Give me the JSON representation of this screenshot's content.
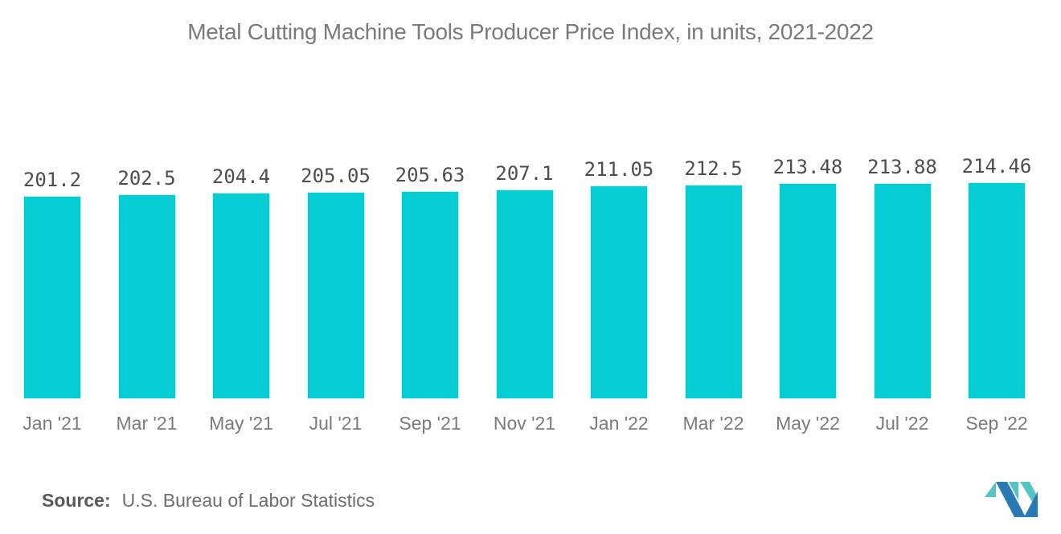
{
  "title": "Metal Cutting Machine Tools Producer Price Index, in units, 2021-2022",
  "source": {
    "label": "Source:",
    "text": "U.S. Bureau of Labor Statistics"
  },
  "logo": {
    "name": "mordor-intelligence-logo",
    "blue": "#2b78b7",
    "teal": "#52c5c2"
  },
  "colors": {
    "bar": "#06cdd4",
    "bar_border": "#c6f2f4",
    "title_text": "#7a7a7a",
    "value_text": "#4d4d4d",
    "axis_text": "#7a7a7a",
    "source_label_text": "#595959",
    "source_text": "#6e6e6e"
  },
  "chart_data": {
    "type": "bar",
    "title": "Metal Cutting Machine Tools Producer Price Index, in units, 2021-2022",
    "categories": [
      "Jan '21",
      "Mar '21",
      "May '21",
      "Jul '21",
      "Sep '21",
      "Nov '21",
      "Jan '22",
      "Mar '22",
      "May '22",
      "Jul '22",
      "Sep '22"
    ],
    "values": [
      201.2,
      202.5,
      204.4,
      205.05,
      205.63,
      207.1,
      211.05,
      212.5,
      213.48,
      213.88,
      214.46
    ],
    "value_labels": [
      "201.2",
      "202.5",
      "204.4",
      "205.05",
      "205.63",
      "207.1",
      "211.05",
      "212.5",
      "213.48",
      "213.88",
      "214.46"
    ],
    "xlabel": "",
    "ylabel": "",
    "ylim": [
      0,
      215
    ],
    "grid": false,
    "legend": false,
    "bar_labels_shown": true
  }
}
